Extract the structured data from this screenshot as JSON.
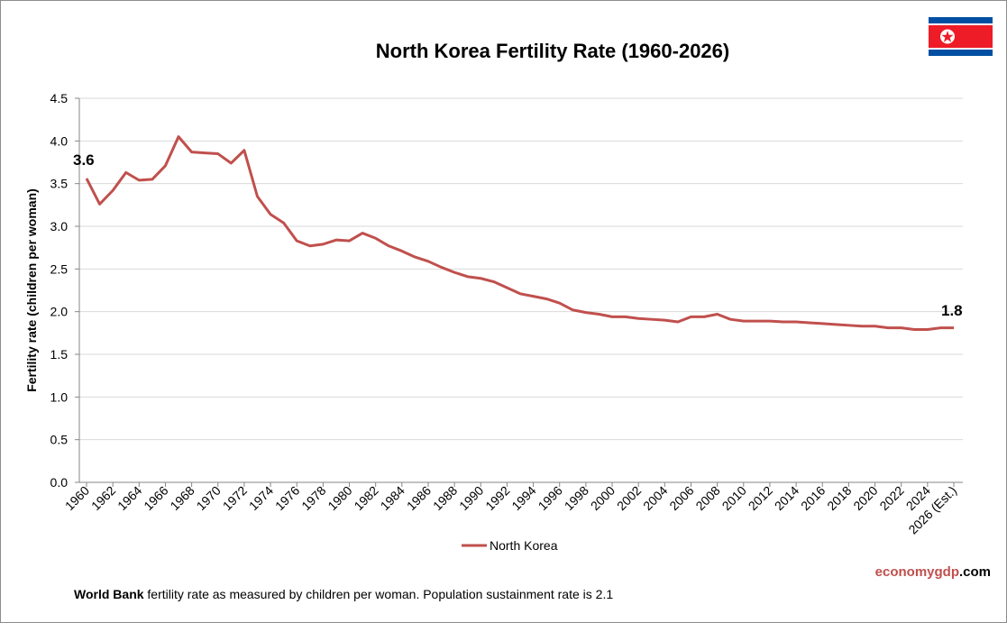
{
  "chart_data": {
    "type": "line",
    "title": "North Korea Fertility Rate (1960-2026)",
    "ylabel": "Fertility rate (children per woman)",
    "xlabel": "",
    "ylim": [
      0,
      4.5
    ],
    "yticks": [
      "0.0",
      "0.5",
      "1.0",
      "1.5",
      "2.0",
      "2.5",
      "3.0",
      "3.5",
      "4.0",
      "4.5"
    ],
    "grid": true,
    "legend_position": "bottom",
    "x": [
      1960,
      1961,
      1962,
      1963,
      1964,
      1965,
      1966,
      1967,
      1968,
      1969,
      1970,
      1971,
      1972,
      1973,
      1974,
      1975,
      1976,
      1977,
      1978,
      1979,
      1980,
      1981,
      1982,
      1983,
      1984,
      1985,
      1986,
      1987,
      1988,
      1989,
      1990,
      1991,
      1992,
      1993,
      1994,
      1995,
      1996,
      1997,
      1998,
      1999,
      2000,
      2001,
      2002,
      2003,
      2004,
      2005,
      2006,
      2007,
      2008,
      2009,
      2010,
      2011,
      2012,
      2013,
      2014,
      2015,
      2016,
      2017,
      2018,
      2019,
      2020,
      2021,
      2022,
      2023,
      2024,
      2025,
      2026
    ],
    "xtick_labels": [
      "1960",
      "1962",
      "1964",
      "1966",
      "1968",
      "1970",
      "1972",
      "1974",
      "1976",
      "1978",
      "1980",
      "1982",
      "1984",
      "1986",
      "1988",
      "1990",
      "1992",
      "1994",
      "1996",
      "1998",
      "2000",
      "2002",
      "2004",
      "2006",
      "2008",
      "2010",
      "2012",
      "2014",
      "2016",
      "2018",
      "2020",
      "2022",
      "2024",
      "2026 (Est.)"
    ],
    "series": [
      {
        "name": "North Korea",
        "color": "#c0504d",
        "values": [
          3.56,
          3.26,
          3.42,
          3.63,
          3.54,
          3.55,
          3.71,
          4.05,
          3.87,
          3.86,
          3.85,
          3.74,
          3.89,
          3.35,
          3.14,
          3.04,
          2.83,
          2.77,
          2.79,
          2.84,
          2.83,
          2.92,
          2.86,
          2.77,
          2.71,
          2.64,
          2.59,
          2.52,
          2.46,
          2.41,
          2.39,
          2.35,
          2.28,
          2.21,
          2.18,
          2.15,
          2.1,
          2.02,
          1.99,
          1.97,
          1.94,
          1.94,
          1.92,
          1.91,
          1.9,
          1.88,
          1.94,
          1.94,
          1.97,
          1.91,
          1.89,
          1.89,
          1.89,
          1.88,
          1.88,
          1.87,
          1.86,
          1.85,
          1.84,
          1.83,
          1.83,
          1.81,
          1.81,
          1.79,
          1.79,
          1.81,
          1.81
        ]
      }
    ],
    "annotations": [
      "3.6",
      "1.8"
    ]
  },
  "brand": {
    "part1": "economygdp",
    "part2": ".com"
  },
  "note": {
    "bold": "World Bank",
    "text": " fertility rate as measured by children per woman.  Population sustainment rate is 2.1"
  },
  "flag": {
    "icon": "north-korea-flag-icon",
    "colors": [
      "#024fa2",
      "#ed1c27",
      "#ffffff"
    ]
  }
}
